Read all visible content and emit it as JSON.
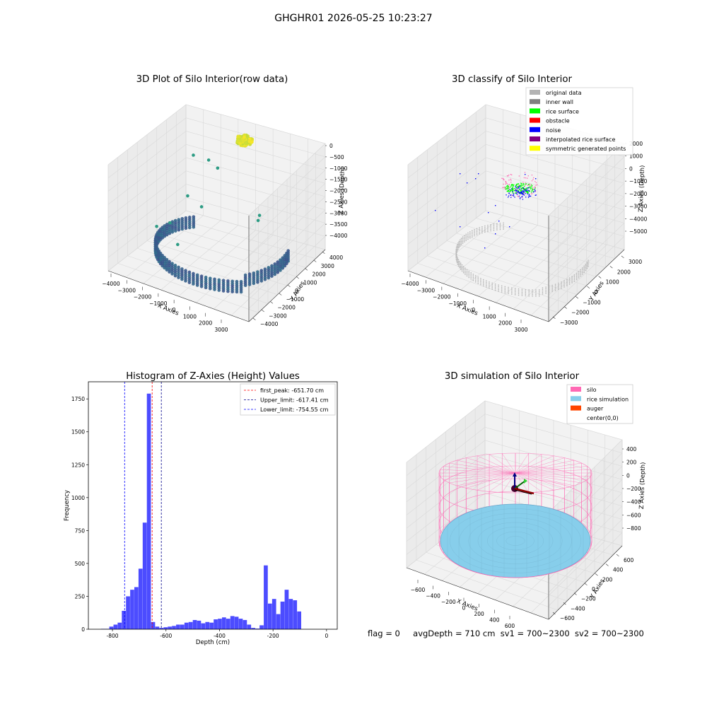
{
  "suptitle": "GHGHR01 2026-05-25 10:23:27",
  "chart_data": [
    {
      "type": "scatter",
      "projection": "3d",
      "title": "3D Plot of Silo Interior(row data)",
      "xlabel": "X Axies",
      "ylabel": "Y Axies",
      "zlabel": "Z Axies (Depth)",
      "x_ticks": [
        "−4000",
        "−3000",
        "−2000",
        "−1000",
        "0",
        "1000",
        "2000",
        "3000"
      ],
      "y_ticks": [
        "4000",
        "3000",
        "2000",
        "1000",
        "0",
        "−1000",
        "−2000",
        "−3000",
        "−4000"
      ],
      "z_ticks": [
        "0",
        "−500",
        "−1000",
        "−1500",
        "−2000",
        "−2500",
        "−3000",
        "−3500",
        "−4000"
      ],
      "grid": true,
      "colormap": "viridis by depth",
      "series": [
        {
          "x": [
            -300,
            -150,
            0,
            150,
            300,
            200,
            -50,
            -250
          ],
          "y": [
            -100,
            150,
            250,
            120,
            -50,
            -200,
            -250,
            -150
          ],
          "z": [
            -700,
            -650,
            -640,
            -660,
            -700,
            -720,
            -720,
            -710
          ]
        },
        {
          "x": [
            3300,
            3500,
            3400,
            3000,
            2400,
            1500,
            500,
            -500,
            -1500,
            -2400,
            -3000,
            -3400,
            -3600,
            -3500,
            -3200
          ],
          "y": [
            1200,
            0,
            -900,
            -1800,
            -2500,
            -3000,
            -3300,
            -3400,
            -3200,
            -2700,
            -2000,
            -1200,
            -300,
            400,
            1000
          ],
          "z": [
            -3500,
            -3600,
            -3700,
            -3800,
            -3850,
            -3900,
            -3900,
            -3900,
            -3900,
            -3850,
            -3800,
            -3750,
            -3700,
            -3600,
            -3500
          ]
        }
      ]
    },
    {
      "type": "scatter",
      "projection": "3d",
      "title": "3D classify of Silo Interior",
      "xlabel": "X Axies",
      "ylabel": "Y Axies",
      "zlabel": "Z Axies (Depth)",
      "x_ticks": [
        "−4000",
        "−3000",
        "−2000",
        "−1000",
        "0",
        "1000",
        "2000",
        "3000"
      ],
      "y_ticks": [
        "3000",
        "2000",
        "1000",
        "0",
        "−1000",
        "−2000",
        "−3000"
      ],
      "z_ticks": [
        "2000",
        "1000",
        "0",
        "−1000",
        "−2000",
        "−3000",
        "−4000",
        "−5000"
      ],
      "grid": true,
      "legend_position": "top-right",
      "legend": [
        {
          "label": "original data",
          "color": "#b3b3b3"
        },
        {
          "label": "inner wall",
          "color": "#808080"
        },
        {
          "label": "rice surface",
          "color": "#00ff00"
        },
        {
          "label": "obstacle",
          "color": "#ff0000"
        },
        {
          "label": "noise",
          "color": "#0000ff"
        },
        {
          "label": "interpolated rice surface",
          "color": "#800080"
        },
        {
          "label": "symmetric generated points",
          "color": "#ffff00"
        }
      ]
    },
    {
      "type": "bar",
      "title": "Histogram of Z-Axies (Height) Values",
      "xlabel": "Depth (cm)",
      "ylabel": "Frequency",
      "xlim": [
        -890,
        40
      ],
      "ylim": [
        0,
        1880
      ],
      "x_ticks": [
        -800,
        -600,
        -400,
        -200,
        0
      ],
      "y_ticks": [
        0,
        250,
        500,
        750,
        1000,
        1250,
        1500,
        1750
      ],
      "bin_width": 15.6,
      "bin_start": -843,
      "values": [
        3,
        3,
        20,
        35,
        50,
        140,
        250,
        300,
        320,
        460,
        810,
        1790,
        55,
        20,
        10,
        15,
        20,
        25,
        35,
        35,
        50,
        55,
        70,
        65,
        45,
        55,
        50,
        75,
        80,
        90,
        80,
        100,
        95,
        80,
        70,
        35,
        10,
        5,
        30,
        485,
        195,
        230,
        115,
        210,
        300,
        230,
        220,
        135
      ],
      "bar_color": "#0000ff",
      "vlines": [
        {
          "x": -651.7,
          "color": "#ff0000",
          "label": "first_peak: -651.70 cm"
        },
        {
          "x": -617.41,
          "color": "#00008b",
          "label": "Upper_limit: -617.41 cm"
        },
        {
          "x": -754.55,
          "color": "#0000ff",
          "label": "Lower_limit: -754.55 cm"
        }
      ],
      "legend_position": "top-right"
    },
    {
      "type": "surface",
      "projection": "3d",
      "title": "3D simulation of Silo Interior",
      "xlabel": "X Axies",
      "ylabel": "Y Axies",
      "zlabel": "Z Axies (Depth)",
      "x_ticks": [
        "−600",
        "−400",
        "−200",
        "0",
        "200",
        "400",
        "600"
      ],
      "y_ticks": [
        "600",
        "400",
        "200",
        "0",
        "−200",
        "−400",
        "−600"
      ],
      "z_ticks": [
        "400",
        "200",
        "0",
        "−200",
        "−400",
        "−600",
        "−800"
      ],
      "grid": true,
      "legend_position": "top-right",
      "legend": [
        {
          "label": "silo",
          "color": "#ff69b4"
        },
        {
          "label": "rice simulation",
          "color": "#87ceeb"
        },
        {
          "label": "auger",
          "color": "#ff4500"
        },
        {
          "label": "center(0,0)",
          "color": ""
        }
      ]
    }
  ],
  "footer": {
    "flag": "flag = 0",
    "avg": "avgDepth = 710 cm",
    "sv1": "sv1 = 700~2300",
    "sv2": "sv2 = 700~2300"
  }
}
